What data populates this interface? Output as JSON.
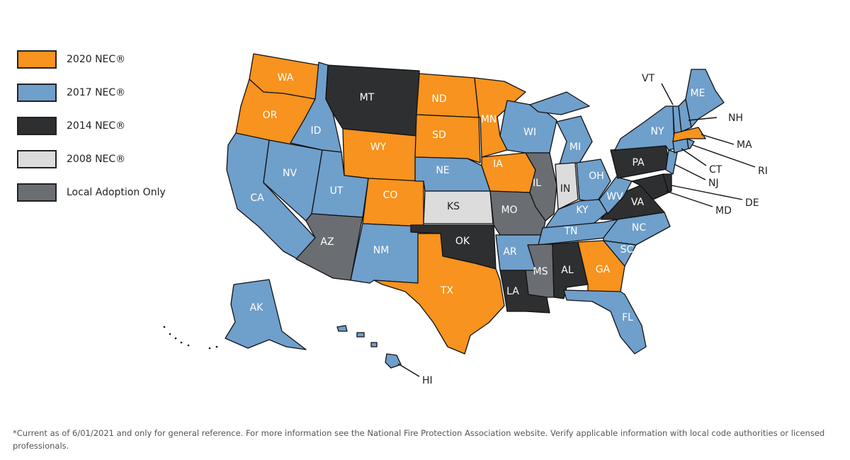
{
  "legend": [
    {
      "key": "2020",
      "label": "2020 NEC®",
      "color": "#f7931e"
    },
    {
      "key": "2017",
      "label": "2017 NEC®",
      "color": "#6f9fcb"
    },
    {
      "key": "2014",
      "label": "2014 NEC®",
      "color": "#2e2f31"
    },
    {
      "key": "2008",
      "label": "2008 NEC®",
      "color": "#dcdcdc"
    },
    {
      "key": "local",
      "label": "Local Adoption Only",
      "color": "#6a6e73"
    }
  ],
  "states": {
    "WA": "2020",
    "OR": "2020",
    "CA": "2017",
    "NV": "2017",
    "ID": "2017",
    "MT": "2014",
    "WY": "2020",
    "UT": "2017",
    "CO": "2020",
    "AZ": "local",
    "NM": "2017",
    "ND": "2020",
    "SD": "2020",
    "NE": "2017",
    "KS": "2008",
    "OK": "2014",
    "TX": "2020",
    "MN": "2020",
    "IA": "2020",
    "MO": "local",
    "AR": "2017",
    "LA": "2014",
    "WI": "2017",
    "IL": "local",
    "MI": "2017",
    "IN": "2008",
    "OH": "2017",
    "KY": "2017",
    "TN": "2017",
    "MS": "local",
    "AL": "2014",
    "GA": "2020",
    "FL": "2017",
    "SC": "2017",
    "NC": "2017",
    "VA": "2014",
    "WV": "2017",
    "PA": "2014",
    "NY": "2017",
    "MD": "2014",
    "DE": "2014",
    "NJ": "2017",
    "CT": "2017",
    "RI": "2017",
    "MA": "2020",
    "VT": "2017",
    "NH": "2017",
    "ME": "2017",
    "AK": "2017",
    "HI": "2017"
  },
  "footnote": "*Current as of 6/01/2021 and only for general reference. For more information see the National Fire Protection Association website. Verify applicable information with local code authorities or licensed professionals."
}
